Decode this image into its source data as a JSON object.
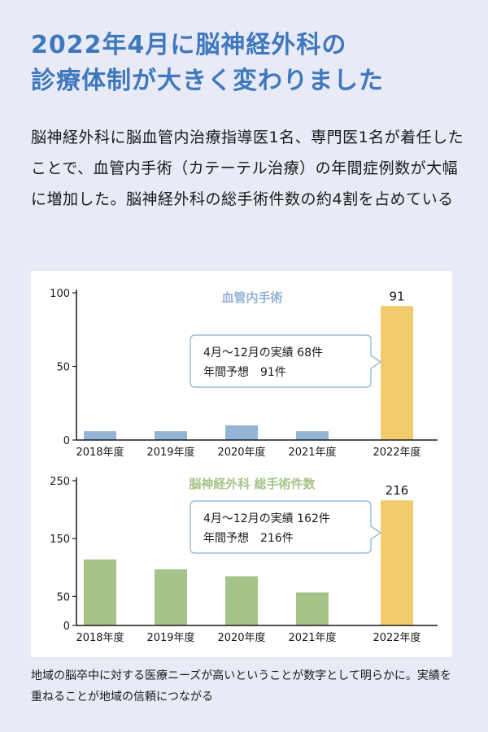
{
  "title_line1": "2022年4月に脳神経外科の",
  "title_line2": "診療体制が大きく変わりました",
  "lead_text": "脳神経外科に脳血管内治療指導医1名、専門医1名が着任したことで、血管内手術（カテーテル治療）の年間症例数が大幅に増加した。脳神経外科の総手術件数の約4割を占めている",
  "caption_text": "地域の脳卒中に対する医療ニーズが高いということが数字として明らかに。実績を重ねることが地域の信頼につながる",
  "colors": {
    "title": "#3f78be",
    "bar1": "#93b4d4",
    "bar2": "#a6c48a",
    "highlight": "#f0cc6c",
    "callout_border": "#9bbdda"
  },
  "chart_data": [
    {
      "type": "bar",
      "title": "血管内手術",
      "categories": [
        "2018年度",
        "2019年度",
        "2020年度",
        "2021年度",
        "2022年度"
      ],
      "values": [
        6,
        6,
        10,
        6,
        91
      ],
      "value_labels": [
        "",
        "",
        "",
        "",
        "91"
      ],
      "yticks": [
        0,
        50,
        100
      ],
      "ylim": [
        0,
        100
      ],
      "highlight_index": 4,
      "callout": [
        "4月～12月の実績 68件",
        "年間予想　91件"
      ]
    },
    {
      "type": "bar",
      "title": "脳神経外科 総手術件数",
      "categories": [
        "2018年度",
        "2019年度",
        "2020年度",
        "2021年度",
        "2022年度"
      ],
      "values": [
        114,
        97,
        85,
        57,
        216
      ],
      "value_labels": [
        "",
        "",
        "",
        "",
        "216"
      ],
      "yticks": [
        0,
        50,
        150,
        250
      ],
      "ylim": [
        0,
        250
      ],
      "highlight_index": 4,
      "callout": [
        "4月～12月の実績 162件",
        "年間予想　216件"
      ]
    }
  ]
}
